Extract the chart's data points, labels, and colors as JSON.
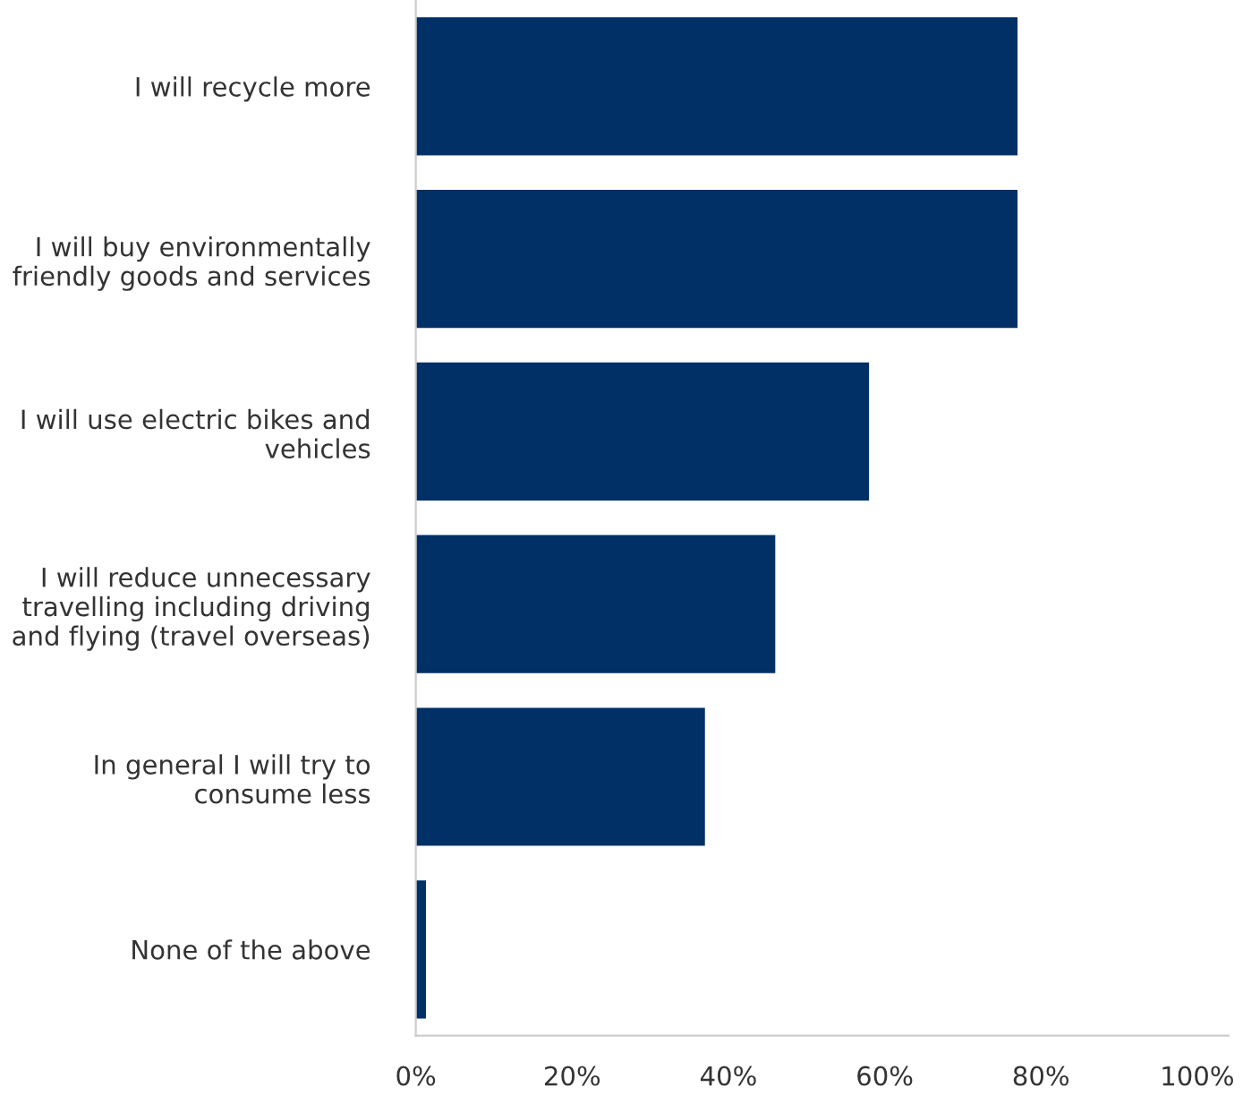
{
  "chart_data": {
    "type": "bar",
    "orientation": "horizontal",
    "categories": [
      "I will recycle more",
      "I will buy environmentally\nfriendly goods and services",
      "I will use electric bikes and\nvehicles",
      "I will reduce unnecessary\ntravelling including driving\nand flying (travel overseas)",
      "In general I will try to\nconsume less",
      "None of the above"
    ],
    "values": [
      77,
      77,
      58,
      46,
      37,
      1.3
    ],
    "color": "#003066",
    "xlim": [
      0,
      104
    ],
    "xticks": [
      {
        "value": 0,
        "label": "0%"
      },
      {
        "value": 20,
        "label": "20%"
      },
      {
        "value": 40,
        "label": "40%"
      },
      {
        "value": 60,
        "label": "60%"
      },
      {
        "value": 80,
        "label": "80%"
      },
      {
        "value": 100,
        "label": "100%"
      }
    ],
    "grid": false,
    "legend": false
  }
}
